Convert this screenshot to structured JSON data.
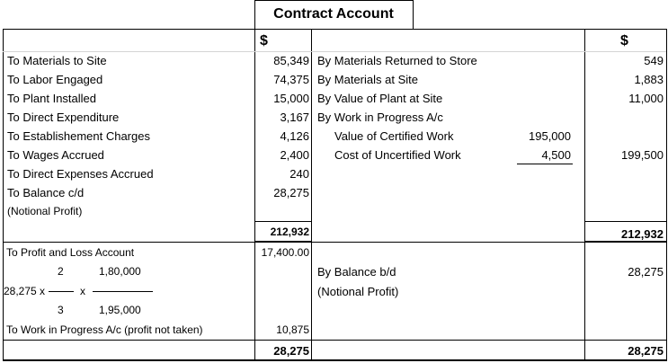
{
  "title": "Contract Account",
  "currency": {
    "left": "$",
    "right": "$"
  },
  "rows": [
    {
      "debit": "To Materials to Site",
      "debit_amount": "85,349",
      "credit": "By Materials Returned to Store",
      "credit_amount": "549"
    },
    {
      "debit": "To Labor Engaged",
      "debit_amount": "74,375",
      "credit": "By Materials at Site",
      "credit_amount": "1,883"
    },
    {
      "debit": "To Plant Installed",
      "debit_amount": "15,000",
      "credit": "By Value of Plant at Site",
      "credit_amount": "11,000"
    },
    {
      "debit": "To Direct Expenditure",
      "debit_amount": "3,167",
      "credit": "By Work in Progress A/c"
    },
    {
      "debit": "To Establishement Charges",
      "debit_amount": "4,126",
      "credit_detail": "Value of Certified Work",
      "credit_detail_amount": "195,000"
    },
    {
      "debit": "To Wages Accrued",
      "debit_amount": "2,400",
      "credit_detail": "Cost of Uncertified Work",
      "credit_detail_amount": "4,500",
      "credit_amount": "199,500"
    },
    {
      "debit": "To Direct Expenses Accrued",
      "debit_amount": "240"
    },
    {
      "debit": "To Balance c/d",
      "debit_amount": "28,275"
    },
    {
      "debit": "(Notional Profit)"
    }
  ],
  "total_1": {
    "debit": "212,932",
    "credit": "212,932"
  },
  "profit_and_loss": {
    "label": "To Profit and Loss Account",
    "amount": "17,400.00"
  },
  "formula": {
    "multiplicand": "28,275 x",
    "times": "x",
    "fraction_1": {
      "numerator": "2",
      "denominator": "3"
    },
    "fraction_2": {
      "numerator": "1,80,000",
      "denominator": "1,95,000"
    }
  },
  "balance_bd": {
    "label": "By Balance b/d",
    "note": "(Notional Profit)",
    "amount": "28,275"
  },
  "work_in_progress": {
    "label": "To Work in Progress A/c (profit not taken)",
    "amount": "10,875"
  },
  "total_2": {
    "debit": "28,275",
    "credit": "28,275"
  }
}
